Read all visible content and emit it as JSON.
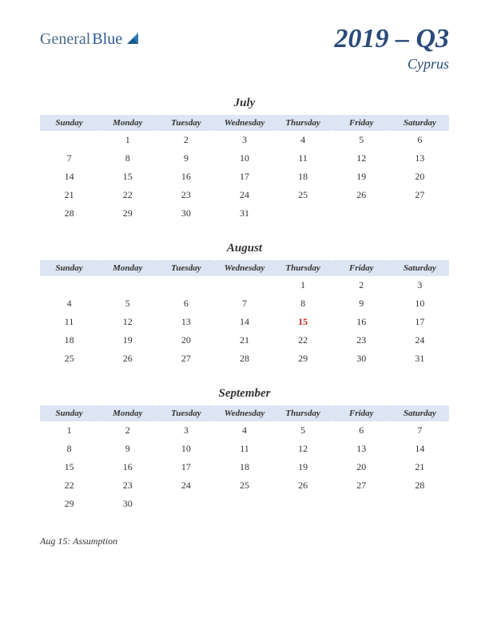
{
  "logo": {
    "text1": "General",
    "text2": "Blue",
    "color1": "#4a6a8a",
    "color2": "#2a5a9a"
  },
  "title": {
    "quarter": "2019 – Q3",
    "country": "Cyprus",
    "color": "#2a4a7a",
    "quarter_fontsize": 34,
    "country_fontsize": 18
  },
  "day_headers": [
    "Sunday",
    "Monday",
    "Tuesday",
    "Wednesday",
    "Thursday",
    "Friday",
    "Saturday"
  ],
  "header_bg": "#dce5f2",
  "text_color": "#333333",
  "holiday_color": "#c02020",
  "months": [
    {
      "name": "July",
      "weeks": [
        [
          "",
          "1",
          "2",
          "3",
          "4",
          "5",
          "6"
        ],
        [
          "7",
          "8",
          "9",
          "10",
          "11",
          "12",
          "13"
        ],
        [
          "14",
          "15",
          "16",
          "17",
          "18",
          "19",
          "20"
        ],
        [
          "21",
          "22",
          "23",
          "24",
          "25",
          "26",
          "27"
        ],
        [
          "28",
          "29",
          "30",
          "31",
          "",
          "",
          ""
        ]
      ],
      "holiday_cells": []
    },
    {
      "name": "August",
      "weeks": [
        [
          "",
          "",
          "",
          "",
          "1",
          "2",
          "3"
        ],
        [
          "4",
          "5",
          "6",
          "7",
          "8",
          "9",
          "10"
        ],
        [
          "11",
          "12",
          "13",
          "14",
          "15",
          "16",
          "17"
        ],
        [
          "18",
          "19",
          "20",
          "21",
          "22",
          "23",
          "24"
        ],
        [
          "25",
          "26",
          "27",
          "28",
          "29",
          "30",
          "31"
        ]
      ],
      "holiday_cells": [
        [
          2,
          4
        ]
      ]
    },
    {
      "name": "September",
      "weeks": [
        [
          "1",
          "2",
          "3",
          "4",
          "5",
          "6",
          "7"
        ],
        [
          "8",
          "9",
          "10",
          "11",
          "12",
          "13",
          "14"
        ],
        [
          "15",
          "16",
          "17",
          "18",
          "19",
          "20",
          "21"
        ],
        [
          "22",
          "23",
          "24",
          "25",
          "26",
          "27",
          "28"
        ],
        [
          "29",
          "30",
          "",
          "",
          "",
          "",
          ""
        ]
      ],
      "holiday_cells": []
    }
  ],
  "holidays_list": [
    "Aug 15: Assumption"
  ]
}
